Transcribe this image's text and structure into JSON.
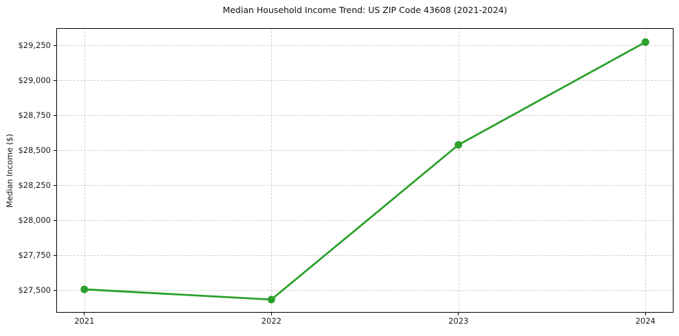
{
  "chart_data": {
    "type": "line",
    "title": "Median Household Income Trend: US ZIP Code 43608 (2021-2024)",
    "xlabel": "",
    "ylabel": "Median Income ($)",
    "x": [
      2021,
      2022,
      2023,
      2024
    ],
    "x_tick_labels": [
      "2021",
      "2022",
      "2023",
      "2024"
    ],
    "series": [
      {
        "name": "Median Household Income",
        "values": [
          27507,
          27434,
          28540,
          29275
        ]
      }
    ],
    "yticks": [
      27500,
      27750,
      28000,
      28250,
      28500,
      28750,
      29000,
      29250
    ],
    "ytick_labels": [
      "$27,500",
      "$27,750",
      "$28,000",
      "$28,250",
      "$28,500",
      "$28,750",
      "$29,000",
      "$29,250"
    ],
    "xlim": [
      2020.85,
      2024.15
    ],
    "ylim": [
      27340,
      29375
    ],
    "grid": true,
    "grid_style": "dashed",
    "legend": false,
    "line_color": "#2ca02c",
    "grid_color": "#cccccc",
    "frame_color": "#000000",
    "marker": "circle"
  }
}
